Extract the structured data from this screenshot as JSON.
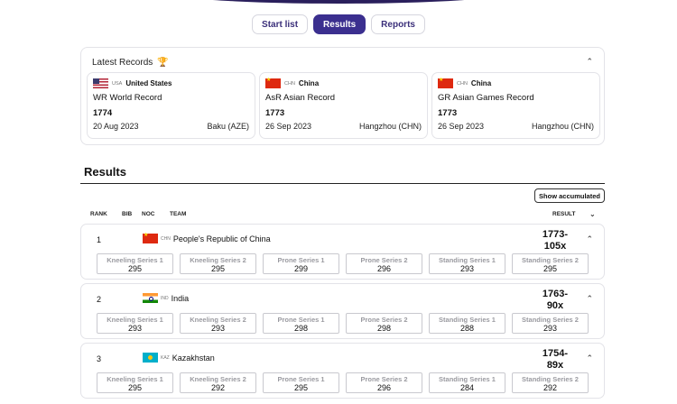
{
  "tabs": [
    {
      "label": "Start list",
      "active": false
    },
    {
      "label": "Results",
      "active": true
    },
    {
      "label": "Reports",
      "active": false
    }
  ],
  "records": {
    "title": "Latest Records",
    "items": [
      {
        "flag": "usa",
        "code": "USA",
        "country": "United States",
        "type": "WR World Record",
        "score": "1774",
        "date": "20 Aug 2023",
        "venue": "Baku (AZE)"
      },
      {
        "flag": "chn",
        "code": "CHN",
        "country": "China",
        "type": "AsR Asian Record",
        "score": "1773",
        "date": "26 Sep 2023",
        "venue": "Hangzhou (CHN)"
      },
      {
        "flag": "chn",
        "code": "CHN",
        "country": "China",
        "type": "GR Asian Games Record",
        "score": "1773",
        "date": "26 Sep 2023",
        "venue": "Hangzhou (CHN)"
      }
    ]
  },
  "results": {
    "title": "Results",
    "show_accumulated": "Show accumulated",
    "columns": {
      "rank": "RANK",
      "bib": "BIB",
      "noc": "NOC",
      "team": "TEAM",
      "result": "RESULT"
    },
    "series_labels": [
      "Kneeling Series 1",
      "Kneeling Series 2",
      "Prone Series 1",
      "Prone Series 2",
      "Standing Series 1",
      "Standing Series 2"
    ],
    "rows": [
      {
        "rank": "1",
        "flag": "chn",
        "code": "CHN",
        "team": "People's Republic of China",
        "result_line1": "1773-",
        "result_line2": "105x",
        "series": [
          "295",
          "295",
          "299",
          "296",
          "293",
          "295"
        ]
      },
      {
        "rank": "2",
        "flag": "ind",
        "code": "IND",
        "team": "India",
        "result_line1": "1763-",
        "result_line2": "90x",
        "series": [
          "293",
          "293",
          "298",
          "298",
          "288",
          "293"
        ]
      },
      {
        "rank": "3",
        "flag": "kaz",
        "code": "KAZ",
        "team": "Kazakhstan",
        "result_line1": "1754-",
        "result_line2": "89x",
        "series": [
          "295",
          "292",
          "295",
          "296",
          "284",
          "292"
        ]
      }
    ]
  }
}
